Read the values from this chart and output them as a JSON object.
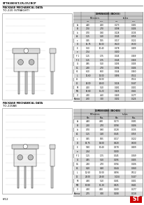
{
  "title": "STTH2003CT,CR,CF,CRCP",
  "bg_color": "#ffffff",
  "border_color": "#888888",
  "line_color": "#444444",
  "section1_title": "PACKAGE MECHANICAL DATA",
  "section1_subtitle": "TO-220 (STRAIGHT)",
  "section2_title": "PACKAGE MECHANICAL DATA",
  "section2_subtitle": "TO-220AB",
  "table_header_main": "DIMENSIONS (INCHES)",
  "table_header_mm": "Millimeters",
  "table_header_in": "Inches",
  "col_headers": [
    "Min.",
    "Max.",
    "Min.",
    "Max."
  ],
  "table1_rows": [
    [
      "A",
      "4.40",
      "4.60",
      "0.173",
      "0.181"
    ],
    [
      "B",
      "2.50",
      "2.70",
      "0.098",
      "0.106"
    ],
    [
      "b",
      "0.70",
      "0.90",
      "0.028",
      "0.035"
    ],
    [
      "b1",
      "1.15",
      "1.40",
      "0.045",
      "0.055"
    ],
    [
      "c",
      "0.45",
      "0.55",
      "0.017",
      "0.022"
    ],
    [
      "D",
      "15.75",
      "16.00",
      "0.620",
      "0.630"
    ],
    [
      "E",
      "9.60",
      "10.40",
      "0.378",
      "0.409"
    ],
    [
      "e",
      "2.54",
      "",
      "0.100",
      ""
    ],
    [
      "F 1",
      "1.15",
      "1.75",
      "0.045",
      "0.069"
    ],
    [
      "F 2",
      "1.15",
      "1.75",
      "0.045",
      "0.069"
    ],
    [
      "G",
      "4.95",
      "5.20",
      "0.195",
      "0.205"
    ],
    [
      "G1",
      "2.40",
      "2.70",
      "0.094",
      "0.106"
    ],
    [
      "H1",
      "6.20",
      "6.60",
      "0.244",
      "0.260"
    ],
    [
      "L",
      "12.60",
      "13.00",
      "0.496",
      "0.512"
    ],
    [
      "L1",
      "",
      "13.00",
      "",
      "0.512"
    ],
    [
      "L2",
      "26.00",
      "26.60",
      "1.024",
      "1.047"
    ],
    [
      "M",
      "4.60",
      "5.10",
      "0.181",
      "0.201"
    ],
    [
      "M1",
      "10.80",
      "11.20",
      "0.425",
      "0.441"
    ],
    [
      "V",
      "4.30",
      "4.50",
      "0.169",
      "0.177"
    ],
    [
      "Kamax",
      "2.60",
      "3.20",
      "0.102",
      "0.126"
    ]
  ],
  "table2_rows": [
    [
      "A",
      "4.40",
      "4.60",
      "0.173",
      "0.181"
    ],
    [
      "B",
      "2.50",
      "2.70",
      "0.098",
      "0.106"
    ],
    [
      "b",
      "0.70",
      "0.90",
      "0.028",
      "0.035"
    ],
    [
      "b1",
      "1.15",
      "1.40",
      "0.045",
      "0.055"
    ],
    [
      "c",
      "0.45",
      "0.55",
      "0.017",
      "0.022"
    ],
    [
      "D",
      "15.75",
      "16.00",
      "0.620",
      "0.630"
    ],
    [
      "E",
      "9.60",
      "10.40",
      "0.378",
      "0.409"
    ],
    [
      "e",
      "2.54",
      "",
      "0.100",
      ""
    ],
    [
      "F 1",
      "1.15",
      "1.75",
      "0.045",
      "0.069"
    ],
    [
      "G",
      "4.95",
      "5.20",
      "0.195",
      "0.205"
    ],
    [
      "G1",
      "2.40",
      "2.70",
      "0.094",
      "0.106"
    ],
    [
      "H1",
      "6.20",
      "6.60",
      "0.244",
      "0.260"
    ],
    [
      "L",
      "12.60",
      "13.00",
      "0.496",
      "0.512"
    ],
    [
      "L2",
      "26.00",
      "26.60",
      "1.024",
      "1.047"
    ],
    [
      "M",
      "4.60",
      "5.10",
      "0.181",
      "0.201"
    ],
    [
      "M1",
      "10.80",
      "11.20",
      "0.425",
      "0.441"
    ],
    [
      "V",
      "4.30",
      "4.50",
      "0.169",
      "0.177"
    ],
    [
      "Kamax",
      "2.75",
      "3.00",
      "0.108",
      "0.118"
    ]
  ],
  "page_num": "6/12",
  "st_logo_color": "#cc0000",
  "alt_row_color": "#d8d8d8",
  "header_row_color": "#c8c8c8"
}
